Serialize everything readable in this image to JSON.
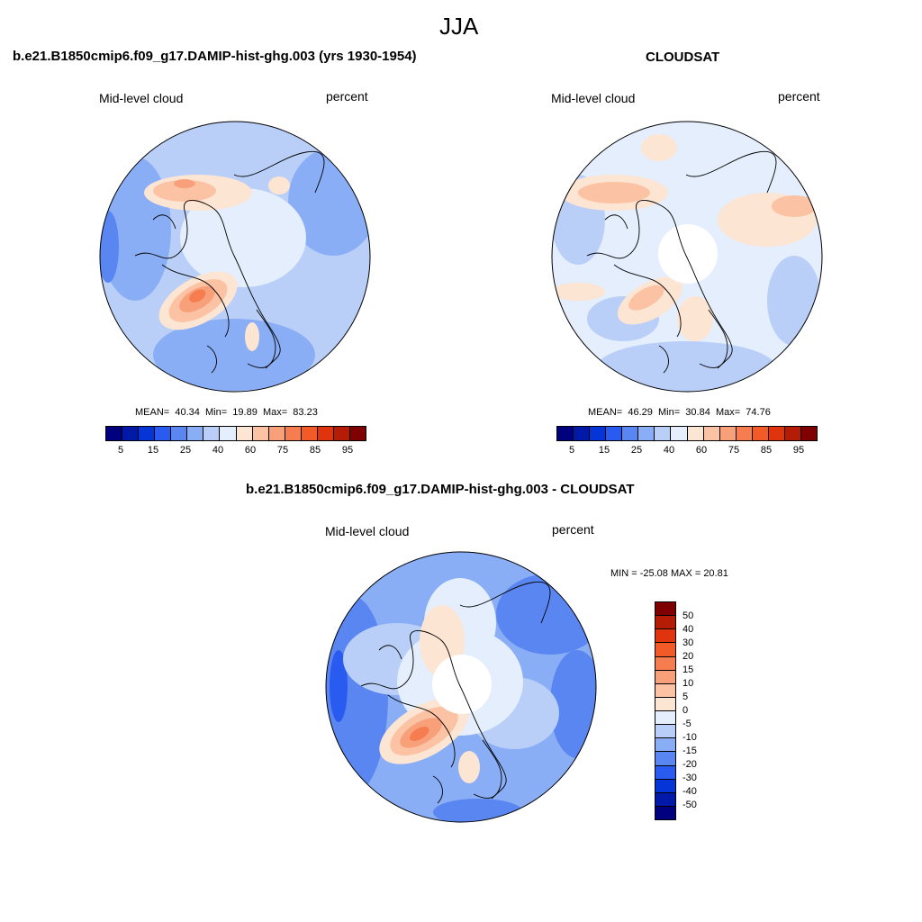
{
  "main_title": "JJA",
  "colors": {
    "abs_scale": [
      "#00007f",
      "#0019a8",
      "#0535d6",
      "#2a5bf0",
      "#5a86f2",
      "#8aaef5",
      "#b9cff8",
      "#e4eefc",
      "#fde5d3",
      "#fbc3a4",
      "#f8a079",
      "#f57d50",
      "#f25a28",
      "#e0340f",
      "#b51c06",
      "#7f0000"
    ],
    "diff_scale": [
      "#7f0000",
      "#b51c06",
      "#e0340f",
      "#f25a28",
      "#f57d50",
      "#f8a079",
      "#fbc3a4",
      "#fde5d3",
      "#e4eefc",
      "#b9cff8",
      "#8aaef5",
      "#5a86f2",
      "#2a5bf0",
      "#0535d6",
      "#0019a8",
      "#00007f"
    ]
  },
  "chart_data": [
    {
      "type": "polar-stereographic map",
      "title": "b.e21.B1850cmip6.f09_g17.DAMIP-hist-ghg.003 (yrs 1930-1954)",
      "left_label": "Mid-level cloud",
      "right_label": "percent",
      "stats": {
        "mean_label": "MEAN=",
        "mean": "40.34",
        "min_label": "Min=",
        "min": "19.89",
        "max_label": "Max=",
        "max": "83.23"
      },
      "colorbar_ticks": [
        "5",
        "15",
        "25",
        "40",
        "60",
        "75",
        "85",
        "95"
      ]
    },
    {
      "type": "polar-stereographic map",
      "title": "CLOUDSAT",
      "left_label": "Mid-level cloud",
      "right_label": "percent",
      "stats": {
        "mean_label": "MEAN=",
        "mean": "46.29",
        "min_label": "Min=",
        "min": "30.84",
        "max_label": "Max=",
        "max": "74.76"
      },
      "colorbar_ticks": [
        "5",
        "15",
        "25",
        "40",
        "60",
        "75",
        "85",
        "95"
      ]
    },
    {
      "type": "polar-stereographic map (difference)",
      "title": "b.e21.B1850cmip6.f09_g17.DAMIP-hist-ghg.003 - CLOUDSAT",
      "left_label": "Mid-level cloud",
      "right_label": "percent",
      "minmax_label": "MIN = -25.08 MAX =  20.81",
      "colorbar_ticks": [
        "50",
        "40",
        "30",
        "20",
        "15",
        "10",
        "5",
        "0",
        "-5",
        "-10",
        "-15",
        "-20",
        "-30",
        "-40",
        "-50"
      ]
    }
  ]
}
